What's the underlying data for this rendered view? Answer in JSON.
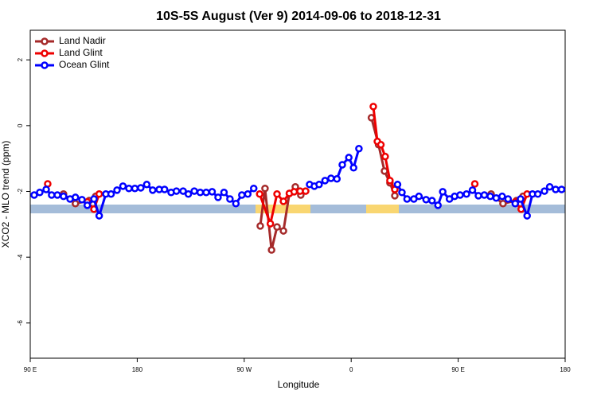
{
  "chart_data": {
    "type": "line",
    "title": "10S-5S August (Ver 9)   2014-09-06 to 2018-12-31",
    "x_label": "Longitude",
    "y_label": "XCO2 - MLO trend (ppm)",
    "xlim": [
      90,
      540
    ],
    "ylim": [
      -7.07,
      2.9
    ],
    "xticks": [
      {
        "value": 90,
        "label": "90 E"
      },
      180,
      {
        "value": 270,
        "label": "90 W"
      },
      {
        "value": 360,
        "label": "0"
      },
      {
        "value": 450,
        "label": "90 E"
      },
      {
        "value": 540,
        "label": "180"
      }
    ],
    "yticks": [
      -6,
      -4,
      -2,
      0,
      2
    ],
    "legend": "top-left",
    "series": [
      {
        "name": "Land Nadir",
        "color": "#a52a2a",
        "x": [
          118,
          128,
          139.5,
          145,
          null,
          283.5,
          287.5,
          293,
          297.6,
          303,
          308,
          313,
          317.6,
          null,
          377,
          383,
          388,
          392.6,
          396.7,
          null,
          477.7,
          487.7,
          499,
          504.5
        ],
        "values": [
          -2.08,
          -2.37,
          -2.28,
          -2.15,
          null,
          -3.05,
          -1.91,
          -3.78,
          -3.08,
          -3.2,
          -2.06,
          -1.86,
          -2.11,
          null,
          0.24,
          -0.58,
          -1.38,
          -1.74,
          -2.13,
          null,
          -2.08,
          -2.37,
          -2.28,
          -2.15
        ]
      },
      {
        "name": "Land Glint",
        "color": "#ee0000",
        "x": [
          104.7,
          null,
          138,
          143.6,
          148,
          null,
          283,
          292,
          297.6,
          303,
          308,
          312,
          317,
          321.7,
          null,
          378.6,
          382,
          385,
          388.6,
          392.6,
          396.7,
          null,
          464,
          null,
          498,
          503,
          508
        ],
        "values": [
          -1.77,
          null,
          -2.32,
          -2.54,
          -2.08,
          null,
          -2.08,
          -2.98,
          -2.08,
          -2.3,
          -2.06,
          -2.01,
          -1.99,
          -1.99,
          null,
          0.58,
          -0.48,
          -0.58,
          -0.94,
          -1.67,
          -1.94,
          null,
          -1.77,
          null,
          -2.32,
          -2.54,
          -2.08
        ]
      },
      {
        "name": "Ocean Glint",
        "color": "#0000ff",
        "x": [
          93.3,
          98,
          103.4,
          108,
          112.8,
          118,
          123.5,
          128,
          133.5,
          138,
          143.6,
          148,
          153.6,
          158,
          163,
          168,
          173,
          178,
          183,
          188,
          193,
          198.5,
          203,
          208.5,
          213,
          218.6,
          223,
          228,
          233,
          238,
          243,
          248,
          253,
          258,
          263,
          268,
          273,
          278,
          null,
          325,
          329,
          333,
          338,
          343,
          348,
          352.5,
          358,
          362,
          366.5,
          null,
          399,
          402.7,
          407,
          412.7,
          417,
          423,
          428,
          433,
          437,
          442.7,
          447,
          451.6,
          457,
          462,
          467,
          472,
          477,
          482,
          487,
          492,
          498,
          502.5,
          508,
          512.5,
          517,
          522.6,
          527,
          532,
          537
        ],
        "values": [
          -2.11,
          -2.03,
          -1.94,
          -2.11,
          -2.11,
          -2.15,
          -2.23,
          -2.18,
          -2.25,
          -2.42,
          -2.23,
          -2.74,
          -2.08,
          -2.08,
          -1.96,
          -1.84,
          -1.91,
          -1.91,
          -1.89,
          -1.79,
          -1.96,
          -1.94,
          -1.94,
          -2.03,
          -1.99,
          -1.99,
          -2.08,
          -1.99,
          -2.03,
          -2.03,
          -2.01,
          -2.18,
          -2.03,
          -2.23,
          -2.37,
          -2.11,
          -2.08,
          -1.91,
          null,
          -1.79,
          -1.84,
          -1.79,
          -1.67,
          -1.6,
          -1.62,
          -1.19,
          -0.97,
          -1.28,
          -0.7,
          null,
          -1.79,
          -2.03,
          -2.23,
          -2.23,
          -2.15,
          -2.25,
          -2.28,
          -2.42,
          -2.01,
          -2.23,
          -2.15,
          -2.11,
          -2.08,
          -1.96,
          -2.13,
          -2.11,
          -2.15,
          -2.2,
          -2.15,
          -2.23,
          -2.37,
          -2.23,
          -2.74,
          -2.08,
          -2.08,
          -1.99,
          -1.86,
          -1.94,
          -1.94
        ]
      }
    ]
  }
}
